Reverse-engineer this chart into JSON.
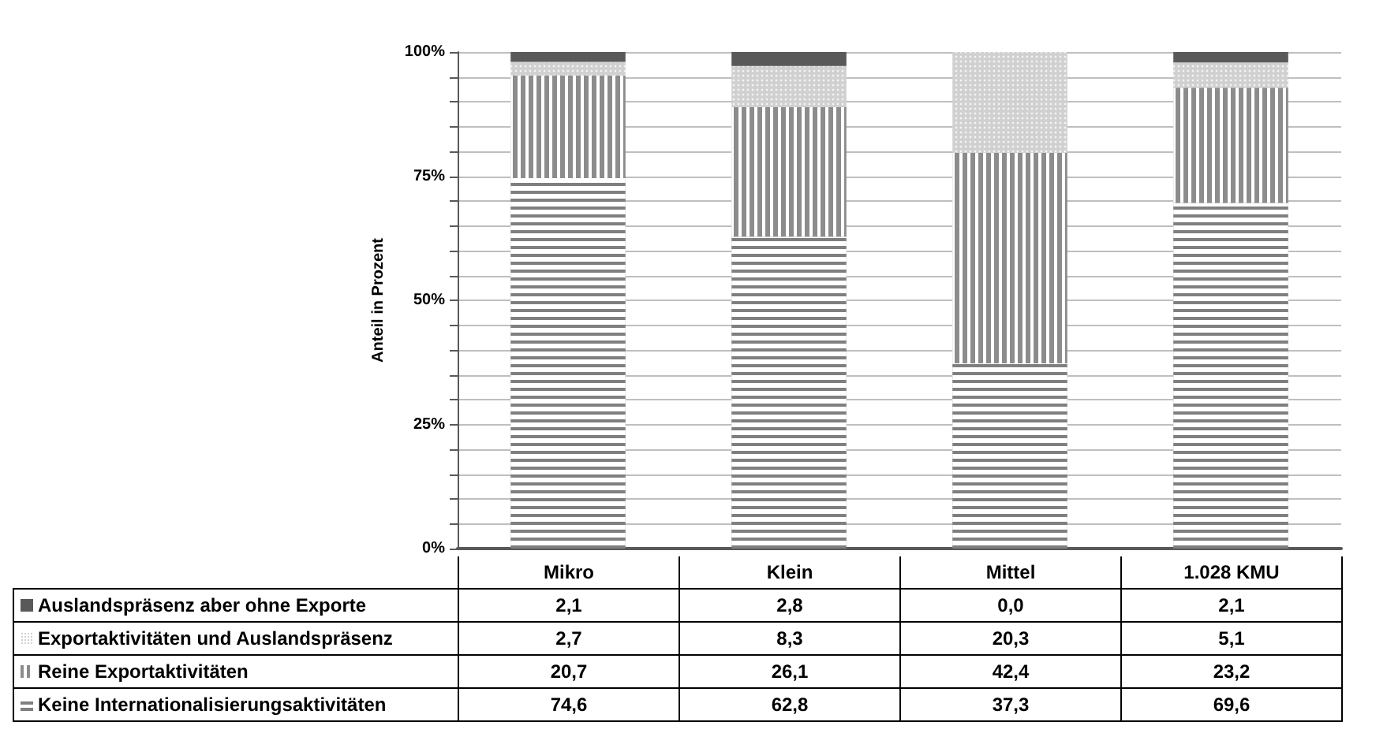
{
  "chart_data": {
    "type": "bar",
    "stacked": true,
    "ylabel": "Anteil in Prozent",
    "categories": [
      "Mikro",
      "Klein",
      "Mittel",
      "1.028 KMU"
    ],
    "series": [
      {
        "name": "Keine Internationalisierungsaktivitäten",
        "color": "#7f7f7f",
        "values": [
          74.6,
          62.8,
          37.3,
          69.6
        ],
        "value_labels": [
          "74,6",
          "62,8",
          "37,3",
          "69,6"
        ]
      },
      {
        "name": "Reine Exportaktivitäten",
        "color": "#8c8c8c",
        "values": [
          20.7,
          26.1,
          42.4,
          23.2
        ],
        "value_labels": [
          "20,7",
          "26,1",
          "42,4",
          "23,2"
        ]
      },
      {
        "name": "Exportaktivitäten und Auslandspräsenz",
        "color": "#d0d0d0",
        "values": [
          2.7,
          8.3,
          20.3,
          5.1
        ],
        "value_labels": [
          "2,7",
          "8,3",
          "20,3",
          "5,1"
        ]
      },
      {
        "name": "Auslandspräsenz aber ohne Exporte",
        "color": "#595959",
        "values": [
          2.1,
          2.8,
          0.0,
          2.1
        ],
        "value_labels": [
          "2,1",
          "2,8",
          "0,0",
          "2,1"
        ]
      }
    ],
    "ylim": [
      0,
      100
    ],
    "yticks": [
      {
        "value": 0,
        "label": "0%"
      },
      {
        "value": 5,
        "label": null
      },
      {
        "value": 10,
        "label": null
      },
      {
        "value": 15,
        "label": null
      },
      {
        "value": 20,
        "label": null
      },
      {
        "value": 25,
        "label": "25%"
      },
      {
        "value": 30,
        "label": null
      },
      {
        "value": 35,
        "label": null
      },
      {
        "value": 40,
        "label": null
      },
      {
        "value": 45,
        "label": null
      },
      {
        "value": 50,
        "label": "50%"
      },
      {
        "value": 55,
        "label": null
      },
      {
        "value": 60,
        "label": null
      },
      {
        "value": 65,
        "label": null
      },
      {
        "value": 70,
        "label": null
      },
      {
        "value": 75,
        "label": "75%"
      },
      {
        "value": 80,
        "label": null
      },
      {
        "value": 85,
        "label": null
      },
      {
        "value": 90,
        "label": null
      },
      {
        "value": 95,
        "label": null
      },
      {
        "value": 100,
        "label": "100%"
      }
    ],
    "grid": "y",
    "legend": "bottom"
  }
}
